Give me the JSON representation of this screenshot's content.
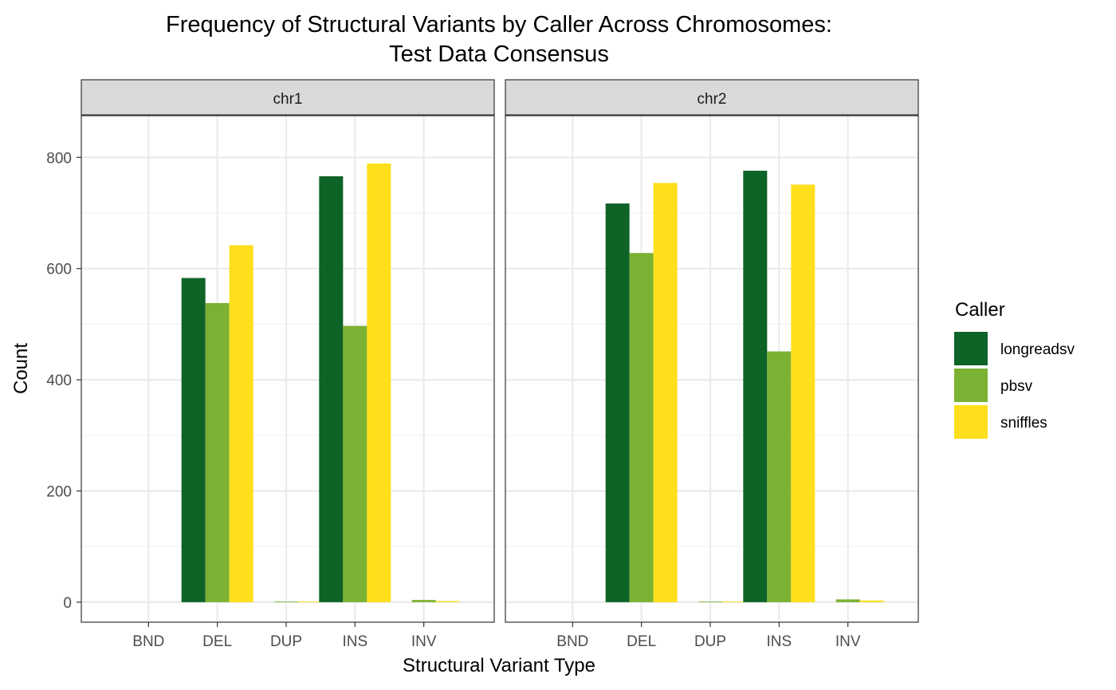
{
  "chart_data": {
    "type": "bar",
    "title_lines": [
      "Frequency of Structural Variants by Caller Across Chromosomes:",
      "Test Data Consensus"
    ],
    "xlabel": "Structural Variant Type",
    "ylabel": "Count",
    "ylim": [
      -36,
      875
    ],
    "yticks": [
      0,
      200,
      400,
      600,
      800
    ],
    "grid": true,
    "categories": [
      "BND",
      "DEL",
      "DUP",
      "INS",
      "INV"
    ],
    "legend": {
      "title": "Caller",
      "placement": "right"
    },
    "series": [
      {
        "name": "longreadsv",
        "color": "#0e6327"
      },
      {
        "name": "pbsv",
        "color": "#7cb233"
      },
      {
        "name": "sniffles",
        "color": "#fddf1b"
      }
    ],
    "panels": [
      {
        "label": "chr1",
        "values": {
          "longreadsv": [
            0,
            583,
            0,
            766,
            0
          ],
          "pbsv": [
            0,
            538,
            1,
            497,
            4
          ],
          "sniffles": [
            0,
            642,
            1,
            789,
            2
          ]
        }
      },
      {
        "label": "chr2",
        "values": {
          "longreadsv": [
            0,
            717,
            0,
            776,
            0
          ],
          "pbsv": [
            0,
            628,
            1,
            451,
            5
          ],
          "sniffles": [
            0,
            754,
            1,
            751,
            3
          ]
        }
      }
    ]
  }
}
